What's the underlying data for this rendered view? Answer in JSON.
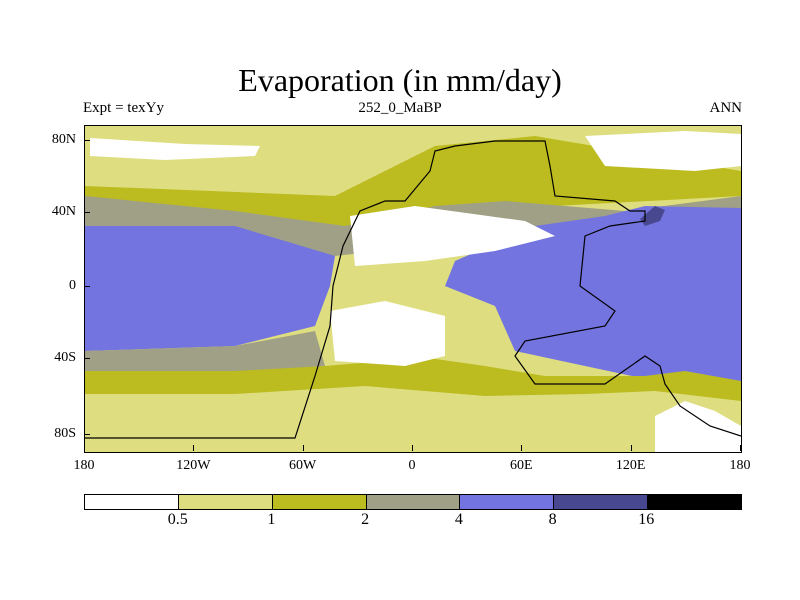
{
  "title": "Evaporation (in mm/day)",
  "left_label": "Expt = texYy",
  "center_label": "252_0_MaBP",
  "right_label": "ANN",
  "y_ticks": [
    "80N",
    "40N",
    "0",
    "40S",
    "80S"
  ],
  "x_ticks": [
    "180",
    "120W",
    "60W",
    "0",
    "60E",
    "120E",
    "180"
  ],
  "legend": {
    "colors": [
      "#ffffff",
      "#dede80",
      "#bcbc20",
      "#a0a086",
      "#7474e0",
      "#484890",
      "#000000"
    ],
    "labels": [
      "0.5",
      "1",
      "2",
      "4",
      "8",
      "16"
    ]
  }
}
